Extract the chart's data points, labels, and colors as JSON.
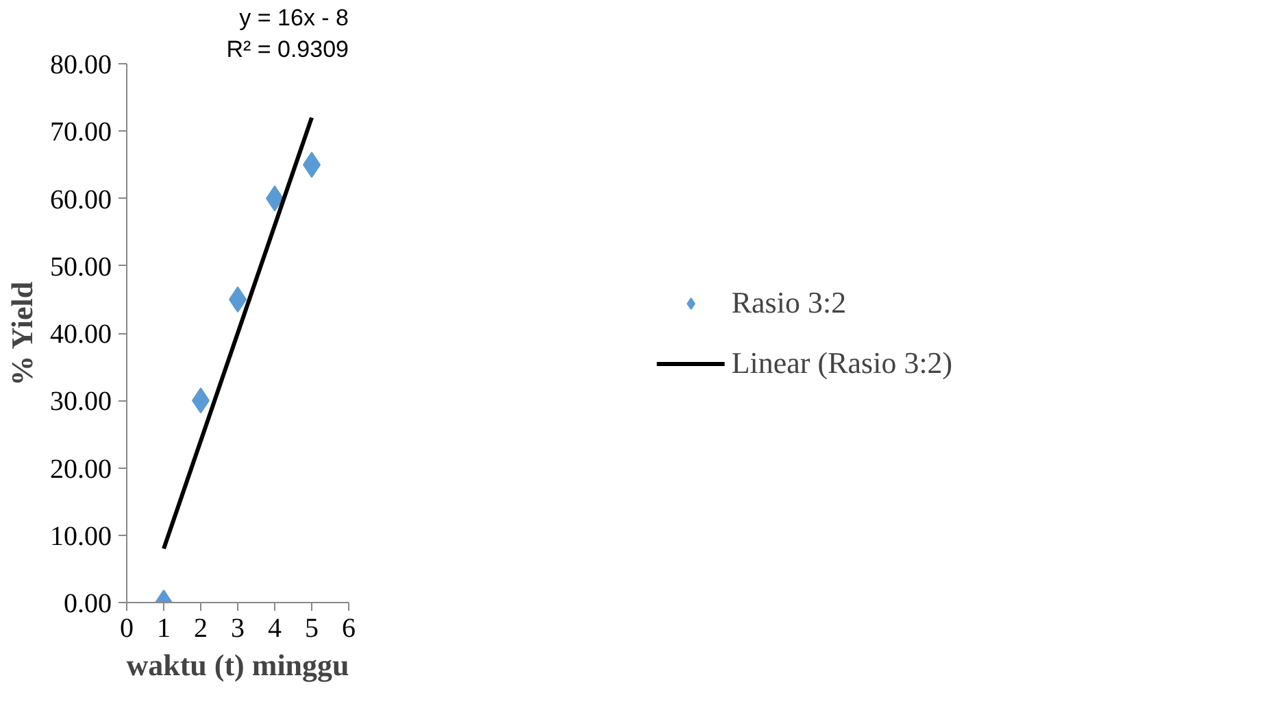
{
  "chart_data": {
    "type": "scatter",
    "xlabel": "waktu (t) minggu",
    "ylabel": "% Yield",
    "x": [
      1,
      2,
      3,
      4,
      5
    ],
    "series": [
      {
        "name": "Rasio 3:2",
        "color": "#5b9bd5",
        "values": [
          0,
          30,
          45,
          60,
          65
        ],
        "marker": "diamond"
      },
      {
        "name": "Linear (Rasio 3:2)",
        "type": "line",
        "color": "#000000",
        "x": [
          1,
          5
        ],
        "values": [
          8,
          72
        ],
        "line_style": "solid"
      }
    ],
    "xlim": [
      0,
      6
    ],
    "xticks": [
      0,
      1,
      2,
      3,
      4,
      5,
      6
    ],
    "ylim": [
      0,
      80
    ],
    "yticks": [
      {
        "value": 0,
        "label": "0.00"
      },
      {
        "value": 10,
        "label": "10.00"
      },
      {
        "value": 20,
        "label": "20.00"
      },
      {
        "value": 30,
        "label": "30.00"
      },
      {
        "value": 40,
        "label": "40.00"
      },
      {
        "value": 50,
        "label": "50.00"
      },
      {
        "value": 60,
        "label": "60.00"
      },
      {
        "value": 70,
        "label": "70.00"
      },
      {
        "value": 80,
        "label": "80.00"
      }
    ],
    "annotations": [
      "y = 16x - 8",
      "R² = 0.9309"
    ],
    "grid": false,
    "legend": "right"
  }
}
